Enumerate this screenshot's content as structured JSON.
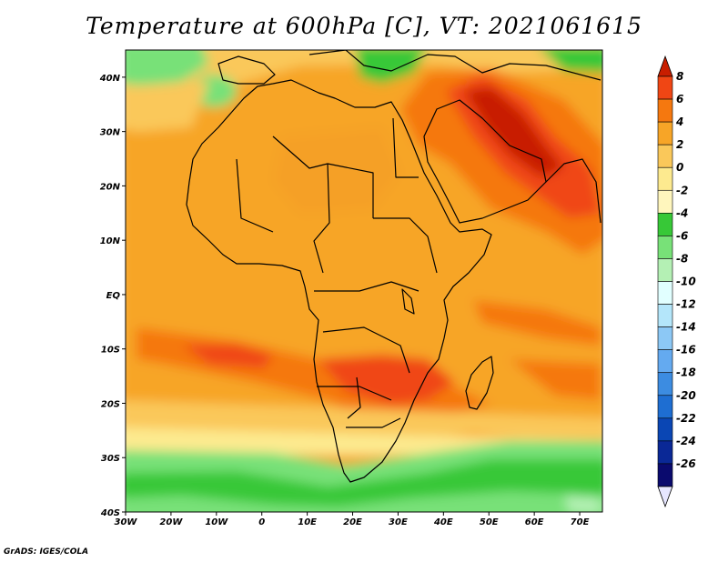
{
  "title": "Temperature at 600hPa [C], VT: 2021061615",
  "credit": "GrADS: IGES/COLA",
  "map": {
    "lon_range": [
      -30,
      75
    ],
    "lat_range": [
      -40,
      45
    ],
    "x_ticks": [
      "30W",
      "20W",
      "10W",
      "0",
      "10E",
      "20E",
      "30E",
      "40E",
      "50E",
      "60E",
      "70E"
    ],
    "y_ticks": [
      "40N",
      "30N",
      "20N",
      "10N",
      "EQ",
      "10S",
      "20S",
      "30S",
      "40S"
    ]
  },
  "colorbar": {
    "labels": [
      "8",
      "6",
      "4",
      "2",
      "0",
      "-2",
      "-4",
      "-6",
      "-8",
      "-10",
      "-12",
      "-14",
      "-16",
      "-18",
      "-20",
      "-22",
      "-24",
      "-26"
    ],
    "colors": [
      "#c81e00",
      "#f04614",
      "#f5780f",
      "#f7a527",
      "#fac85a",
      "#fdea8f",
      "#fff6bd",
      "#37c837",
      "#78e178",
      "#b4f0b4",
      "#e1ffff",
      "#b4e6fa",
      "#8cc8f5",
      "#64aaf0",
      "#3c8ce1",
      "#1e6ed2",
      "#0a46b4",
      "#0a2896",
      "#0a0a6e",
      "#e6e6ff"
    ]
  }
}
